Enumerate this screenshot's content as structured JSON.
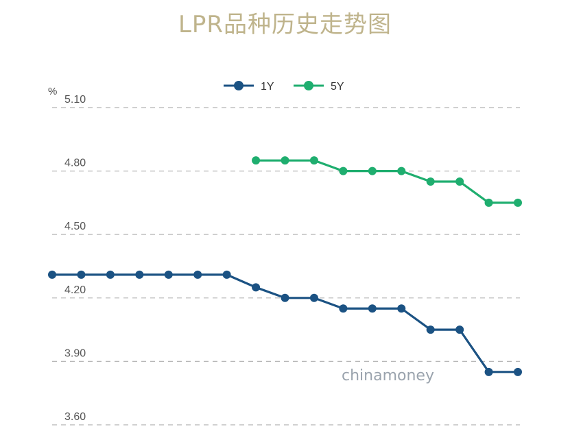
{
  "chart_data": {
    "type": "line",
    "title": "LPR品种历史走势图",
    "ylabel": "%",
    "ylim": [
      3.6,
      5.1
    ],
    "yticks": [
      "5.10",
      "4.80",
      "4.50",
      "4.20",
      "3.90",
      "3.60"
    ],
    "ytick_values": [
      5.1,
      4.8,
      4.5,
      4.2,
      3.9,
      3.6
    ],
    "x": [
      1,
      2,
      3,
      4,
      5,
      6,
      7,
      8,
      9,
      10,
      11,
      12,
      13,
      14,
      15,
      16,
      17
    ],
    "series": [
      {
        "name": "1Y",
        "color": "#1b5283",
        "values": [
          4.31,
          4.31,
          4.31,
          4.31,
          4.31,
          4.31,
          4.31,
          4.25,
          4.2,
          4.2,
          4.15,
          4.15,
          4.15,
          4.05,
          4.05,
          3.85,
          3.85
        ]
      },
      {
        "name": "5Y",
        "color": "#1fae6f",
        "values": [
          null,
          null,
          null,
          null,
          null,
          null,
          null,
          4.85,
          4.85,
          4.85,
          4.8,
          4.8,
          4.8,
          4.75,
          4.75,
          4.65,
          4.65
        ]
      }
    ],
    "grid": true,
    "legend_position": "top-center",
    "annotations": [
      "chinamoney"
    ]
  }
}
